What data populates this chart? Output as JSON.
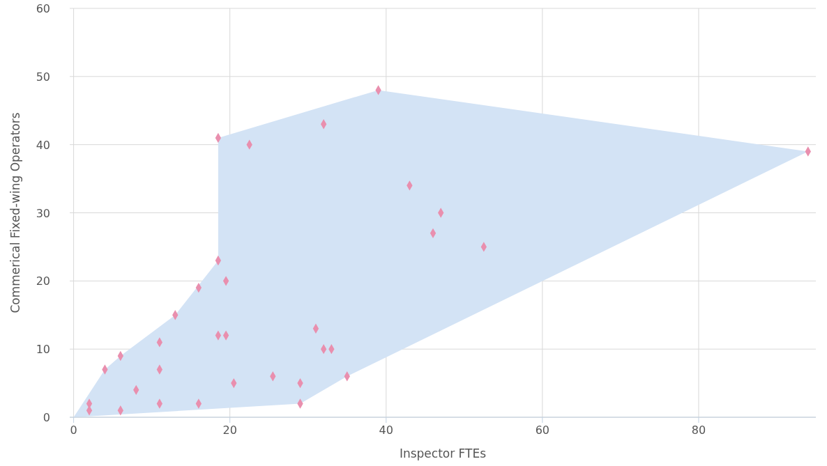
{
  "chart_data": {
    "type": "scatter",
    "xlabel": "Inspector FTEs",
    "ylabel": "Commerical Fixed-wing Operators",
    "xlim": [
      -0.5,
      95
    ],
    "ylim": [
      0,
      60
    ],
    "xticks": [
      0,
      20,
      40,
      60,
      80
    ],
    "yticks": [
      0,
      10,
      20,
      30,
      40,
      50,
      60
    ],
    "grid": true,
    "series": [
      {
        "type": "area",
        "color": "#d3e3f5",
        "x": [
          0,
          29,
          35,
          94,
          39,
          18.5,
          18.5,
          13,
          6,
          4,
          0
        ],
        "values": [
          0,
          2,
          6,
          39,
          48,
          41,
          23,
          15,
          9,
          7,
          0
        ]
      },
      {
        "marker": "diamond",
        "color": "#e98fae",
        "x": [
          2,
          2,
          4,
          6,
          6,
          8,
          11,
          11,
          11,
          13,
          16,
          16,
          18.5,
          18.5,
          18.5,
          19.5,
          19.5,
          20.5,
          22.5,
          25.5,
          29,
          29,
          31,
          32,
          32,
          33,
          35,
          39,
          43,
          46,
          47,
          52.5,
          94
        ],
        "values": [
          2,
          1,
          7,
          9,
          1,
          4,
          11,
          7,
          2,
          15,
          19,
          2,
          23,
          41,
          12,
          20,
          12,
          5,
          40,
          6,
          5,
          2,
          13,
          43,
          10,
          10,
          6,
          48,
          34,
          27,
          30,
          25,
          39
        ]
      }
    ]
  }
}
